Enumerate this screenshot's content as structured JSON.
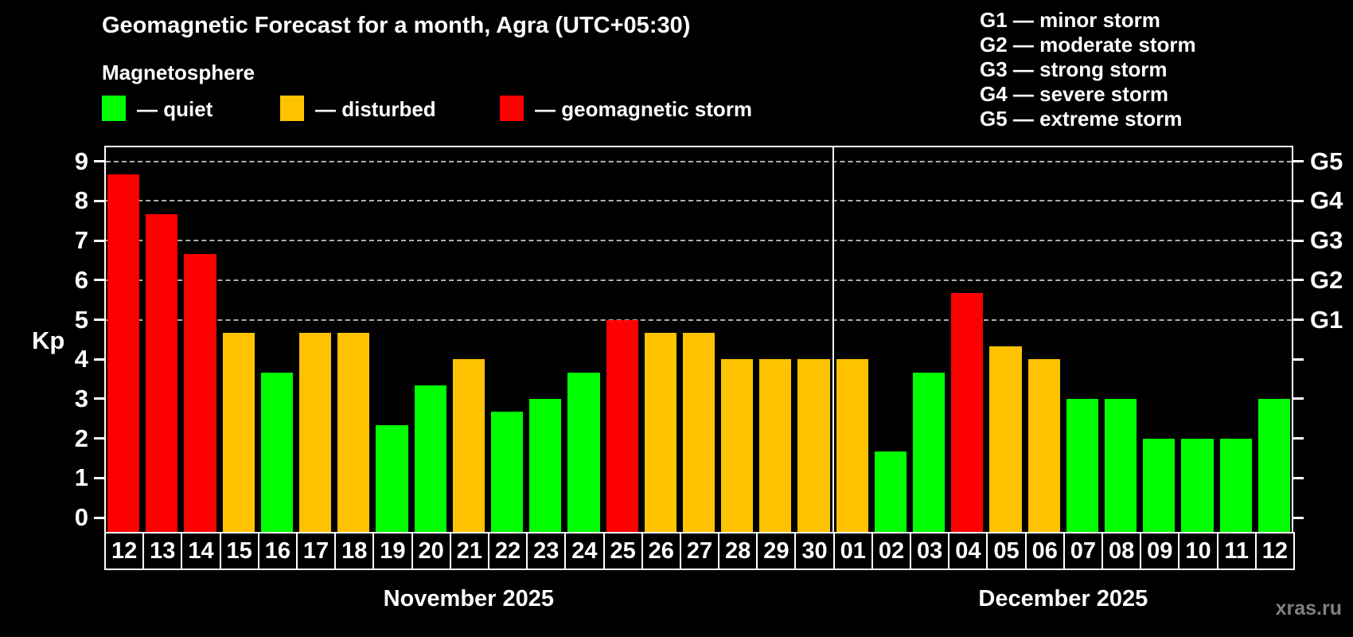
{
  "title": "Geomagnetic Forecast for a month, Agra (UTC+05:30)",
  "subtitle": "Magnetosphere",
  "legend": {
    "items": [
      {
        "name": "quiet",
        "label": "— quiet",
        "color": "#00ff00"
      },
      {
        "name": "disturbed",
        "label": "— disturbed",
        "color": "#ffc200"
      },
      {
        "name": "storm",
        "label": "— geomagnetic storm",
        "color": "#ff0000"
      }
    ]
  },
  "g_legend": {
    "lines": [
      "G1 — minor storm",
      "G2 — moderate storm",
      "G3 — strong storm",
      "G4 — severe storm",
      "G5 — extreme storm"
    ]
  },
  "watermark": "xras.ru",
  "chart_data": {
    "type": "bar",
    "title": "Geomagnetic Forecast for a month, Agra (UTC+05:30)",
    "subtitle": "Magnetosphere",
    "xlabel": "",
    "ylabel": "Kp",
    "ylim": [
      0,
      9
    ],
    "yticks": [
      0,
      1,
      2,
      3,
      4,
      5,
      6,
      7,
      8,
      9
    ],
    "grid": "dashed horizontal lines at Kp 5-9 only",
    "gridline_values": [
      5,
      6,
      7,
      8,
      9
    ],
    "right_axis": [
      {
        "value": 5,
        "label": "G1"
      },
      {
        "value": 6,
        "label": "G2"
      },
      {
        "value": 7,
        "label": "G3"
      },
      {
        "value": 8,
        "label": "G4"
      },
      {
        "value": 9,
        "label": "G5"
      }
    ],
    "legend_position": "top",
    "months": [
      {
        "label": "November 2025",
        "count": 19
      },
      {
        "label": "December 2025",
        "count": 12
      }
    ],
    "categories": [
      "12",
      "13",
      "14",
      "15",
      "16",
      "17",
      "18",
      "19",
      "20",
      "21",
      "22",
      "23",
      "24",
      "25",
      "26",
      "27",
      "28",
      "29",
      "30",
      "01",
      "02",
      "03",
      "04",
      "05",
      "06",
      "07",
      "08",
      "09",
      "10",
      "11",
      "12"
    ],
    "values": [
      8.67,
      7.67,
      6.67,
      4.67,
      3.67,
      4.67,
      4.67,
      2.33,
      3.33,
      4.0,
      2.67,
      3.0,
      3.67,
      5.0,
      4.67,
      4.67,
      4.0,
      4.0,
      4.0,
      4.0,
      1.67,
      3.67,
      5.67,
      4.33,
      4.0,
      3.0,
      3.0,
      2.0,
      2.0,
      2.0,
      3.0
    ],
    "statuses": [
      "storm",
      "storm",
      "storm",
      "disturbed",
      "quiet",
      "disturbed",
      "disturbed",
      "quiet",
      "quiet",
      "disturbed",
      "quiet",
      "quiet",
      "quiet",
      "storm",
      "disturbed",
      "disturbed",
      "disturbed",
      "disturbed",
      "disturbed",
      "disturbed",
      "quiet",
      "quiet",
      "storm",
      "disturbed",
      "disturbed",
      "quiet",
      "quiet",
      "quiet",
      "quiet",
      "quiet",
      "quiet"
    ],
    "status_colors": {
      "quiet": "#00ff00",
      "disturbed": "#ffc200",
      "storm": "#ff0000"
    }
  }
}
